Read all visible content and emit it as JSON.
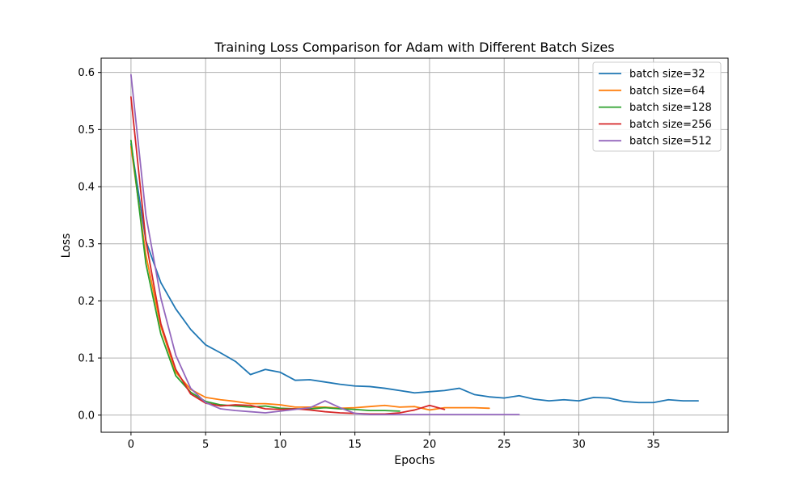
{
  "chart_data": {
    "type": "line",
    "title": "Training Loss Comparison for Adam with Different Batch Sizes",
    "xlabel": "Epochs",
    "ylabel": "Loss",
    "xlim": [
      -2,
      40
    ],
    "ylim": [
      -0.03,
      0.625
    ],
    "xticks": [
      0,
      5,
      10,
      15,
      20,
      25,
      30,
      35
    ],
    "yticks": [
      0.0,
      0.1,
      0.2,
      0.3,
      0.4,
      0.5,
      0.6
    ],
    "grid": true,
    "legend_position": "top-right",
    "series": [
      {
        "name": "batch size=32",
        "color": "#1f77b4",
        "x": [
          0,
          1,
          2,
          3,
          4,
          5,
          6,
          7,
          8,
          9,
          10,
          11,
          12,
          13,
          14,
          15,
          16,
          17,
          18,
          19,
          20,
          21,
          22,
          23,
          24,
          25,
          26,
          27,
          28,
          29,
          30,
          31,
          32,
          33,
          34,
          35,
          36,
          37,
          38
        ],
        "y": [
          0.475,
          0.305,
          0.232,
          0.186,
          0.15,
          0.123,
          0.109,
          0.094,
          0.071,
          0.08,
          0.075,
          0.061,
          0.062,
          0.058,
          0.054,
          0.051,
          0.05,
          0.047,
          0.043,
          0.039,
          0.041,
          0.043,
          0.047,
          0.036,
          0.032,
          0.03,
          0.034,
          0.028,
          0.025,
          0.027,
          0.025,
          0.031,
          0.03,
          0.024,
          0.022,
          0.022,
          0.027,
          0.025,
          0.025
        ]
      },
      {
        "name": "batch size=64",
        "color": "#ff7f0e",
        "x": [
          0,
          1,
          2,
          3,
          4,
          5,
          6,
          7,
          8,
          9,
          10,
          11,
          12,
          13,
          14,
          15,
          16,
          17,
          18,
          19,
          20,
          21,
          22,
          23,
          24
        ],
        "y": [
          0.47,
          0.28,
          0.155,
          0.075,
          0.045,
          0.031,
          0.027,
          0.024,
          0.02,
          0.02,
          0.018,
          0.014,
          0.014,
          0.014,
          0.012,
          0.013,
          0.015,
          0.017,
          0.014,
          0.015,
          0.009,
          0.013,
          0.013,
          0.013,
          0.012
        ]
      },
      {
        "name": "batch size=128",
        "color": "#2ca02c",
        "x": [
          0,
          1,
          2,
          3,
          4,
          5,
          6,
          7,
          8,
          9,
          10,
          11,
          12,
          13,
          14,
          15,
          16,
          17,
          18
        ],
        "y": [
          0.481,
          0.265,
          0.142,
          0.069,
          0.04,
          0.024,
          0.018,
          0.016,
          0.014,
          0.016,
          0.012,
          0.011,
          0.011,
          0.013,
          0.011,
          0.01,
          0.008,
          0.008,
          0.007
        ]
      },
      {
        "name": "batch size=256",
        "color": "#d62728",
        "x": [
          0,
          1,
          2,
          3,
          4,
          5,
          6,
          7,
          8,
          9,
          10,
          11,
          12,
          13,
          14,
          15,
          16,
          17,
          18,
          19,
          20,
          21
        ],
        "y": [
          0.557,
          0.305,
          0.16,
          0.08,
          0.037,
          0.021,
          0.016,
          0.018,
          0.017,
          0.011,
          0.01,
          0.011,
          0.009,
          0.006,
          0.004,
          0.003,
          0.002,
          0.002,
          0.004,
          0.009,
          0.017,
          0.01
        ]
      },
      {
        "name": "batch size=512",
        "color": "#9467bd",
        "x": [
          0,
          1,
          2,
          3,
          4,
          5,
          6,
          7,
          8,
          9,
          10,
          11,
          12,
          13,
          14,
          15,
          16,
          17,
          18,
          19,
          20,
          21,
          22,
          23,
          24,
          25,
          26
        ],
        "y": [
          0.596,
          0.35,
          0.205,
          0.105,
          0.047,
          0.022,
          0.011,
          0.008,
          0.006,
          0.004,
          0.007,
          0.01,
          0.013,
          0.025,
          0.013,
          0.003,
          0.001,
          0.001,
          0.001,
          0.001,
          0.001,
          0.001,
          0.001,
          0.001,
          0.001,
          0.001,
          0.001
        ]
      }
    ]
  }
}
